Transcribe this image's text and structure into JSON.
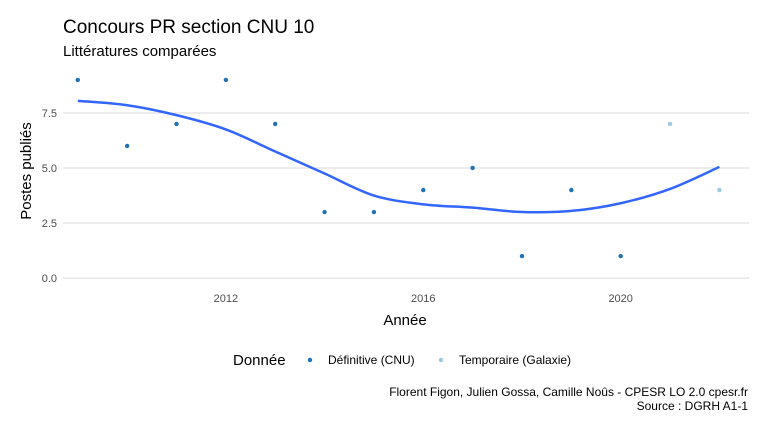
{
  "chart_data": {
    "type": "scatter",
    "title": "Concours PR section CNU 10",
    "subtitle": "Littératures comparées",
    "xlabel": "Année",
    "ylabel": "Postes publiés",
    "xlim": [
      2008.7,
      2022.6
    ],
    "ylim": [
      -0.45,
      9.45
    ],
    "x_ticks": [
      2012,
      2016,
      2020
    ],
    "y_ticks": [
      0.0,
      2.5,
      5.0,
      7.5
    ],
    "x_tick_labels": [
      "2012",
      "2016",
      "2020"
    ],
    "y_tick_labels": [
      "0.0",
      "2.5",
      "5.0",
      "7.5"
    ],
    "grid": true,
    "legend": {
      "title": "Donnée",
      "position": "bottom",
      "entries": [
        "Définitive (CNU)",
        "Temporaire (Galaxie)"
      ]
    },
    "series": [
      {
        "name": "Définitive (CNU)",
        "color": "#2171b5",
        "x": [
          2009,
          2010,
          2011,
          2012,
          2013,
          2014,
          2015,
          2016,
          2017,
          2018,
          2019,
          2020
        ],
        "y": [
          9,
          6,
          7,
          9,
          7,
          3,
          3,
          4,
          5,
          1,
          4,
          1
        ]
      },
      {
        "name": "Temporaire (Galaxie)",
        "color": "#9ecae1",
        "x": [
          2021,
          2022
        ],
        "y": [
          7,
          4
        ]
      }
    ],
    "smooth": {
      "color": "#3366ff",
      "x": [
        2009,
        2010,
        2011,
        2012,
        2013,
        2014,
        2015,
        2016,
        2017,
        2018,
        2019,
        2020,
        2021,
        2022
      ],
      "y": [
        8.05,
        7.85,
        7.4,
        6.75,
        5.75,
        4.75,
        3.75,
        3.35,
        3.2,
        3.0,
        3.05,
        3.4,
        4.05,
        5.05
      ]
    }
  },
  "caption": {
    "line1": "Florent Figon, Julien Gossa, Camille Noûs - CPESR LO 2.0 cpesr.fr",
    "line2": "Source : DGRH A1-1"
  }
}
